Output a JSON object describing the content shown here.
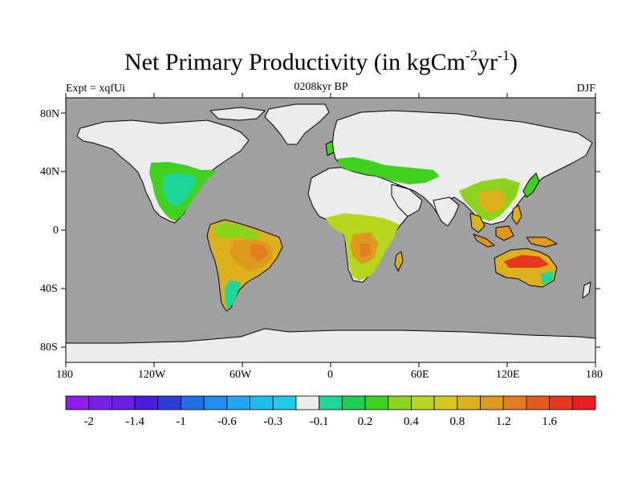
{
  "title": {
    "main": "Net Primary Productivity (in kgCm",
    "sup1": "-2",
    "mid": "yr",
    "sup2": "-1",
    "close": ")"
  },
  "left_label": "Expt = xqfUi",
  "center_label": "0208kyr BP",
  "right_label": "DJF",
  "lat_ticks": [
    "80N",
    "40N",
    "0",
    "40S",
    "80S"
  ],
  "lon_ticks": [
    "180",
    "120W",
    "60W",
    "0",
    "60E",
    "120E",
    "180"
  ],
  "colorbar": {
    "colors": [
      "#8b1fe8",
      "#7c1fe6",
      "#6a1fe4",
      "#4b1edf",
      "#2b3fd6",
      "#1e6fe0",
      "#1e8ff0",
      "#1fa7ef",
      "#1fbcea",
      "#1fcbe6",
      "#ececec",
      "#1ed69a",
      "#1fcf55",
      "#40d020",
      "#8cd41e",
      "#b8d61e",
      "#d6c81e",
      "#dcb01e",
      "#dd9a1e",
      "#e27c1e",
      "#e45a1e",
      "#e5381e",
      "#e71e1e"
    ],
    "labels": [
      "-2",
      "-1.4",
      "-1",
      "-0.6",
      "-0.3",
      "-0.1",
      "0.2",
      "0.4",
      "0.8",
      "1.2",
      "1.6"
    ]
  },
  "colors": {
    "ocean": "#a0a0a0",
    "land_bare": "#ececec",
    "coast": "#000000"
  }
}
